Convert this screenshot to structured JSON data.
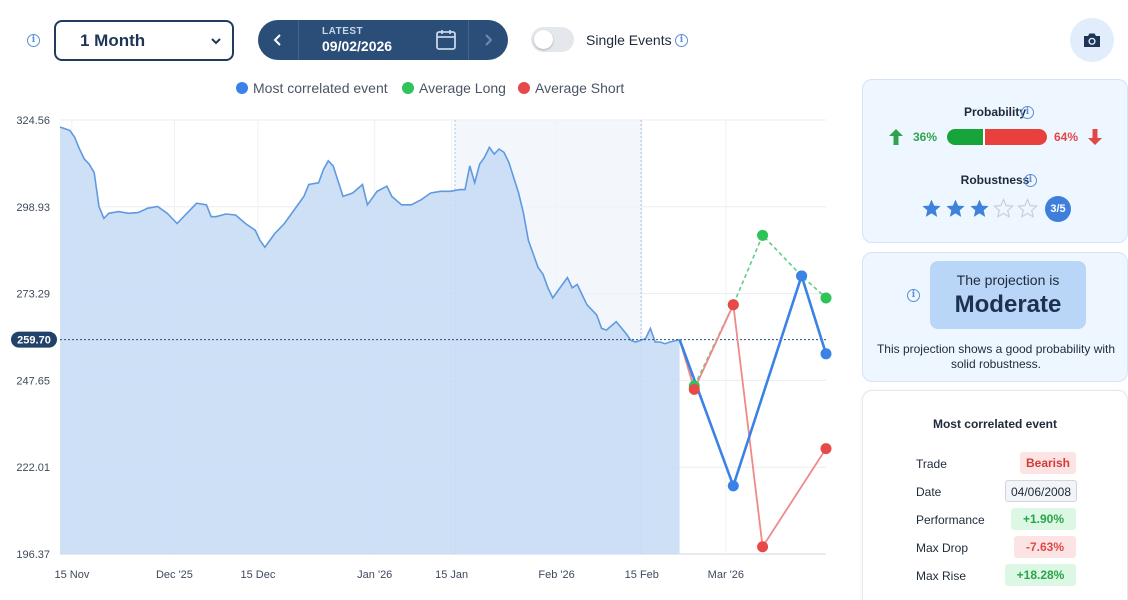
{
  "toolbar": {
    "period": "1 Month",
    "latest_label": "LATEST",
    "latest_date": "09/02/2026",
    "single_events_label": "Single Events",
    "single_events_on": false
  },
  "legend": [
    {
      "label": "Most correlated event",
      "color": "#3b82e6"
    },
    {
      "label": "Average Long",
      "color": "#2ec45a"
    },
    {
      "label": "Average Short",
      "color": "#e84848"
    }
  ],
  "chart_data": {
    "type": "line",
    "y_ticks": [
      "324.56",
      "298.93",
      "273.29",
      "247.65",
      "222.01",
      "196.37"
    ],
    "x_ticks": [
      "15 Nov",
      "Dec '25",
      "15 Dec",
      "Jan '26",
      "15 Jan",
      "Feb '26",
      "15 Feb",
      "Mar '26"
    ],
    "current_value": "259.70",
    "ylim": [
      196.37,
      324.56
    ],
    "history": {
      "name": "Price",
      "points": [
        [
          0,
          322.5
        ],
        [
          2,
          321.5
        ],
        [
          3,
          319.5
        ],
        [
          4,
          316
        ],
        [
          5,
          313
        ],
        [
          6,
          311.5
        ],
        [
          7,
          309
        ],
        [
          8,
          299
        ],
        [
          9,
          295.5
        ],
        [
          10,
          297
        ],
        [
          12,
          297.5
        ],
        [
          14,
          297
        ],
        [
          16,
          297.2
        ],
        [
          18,
          298.5
        ],
        [
          20,
          299
        ],
        [
          22,
          297
        ],
        [
          24,
          294
        ],
        [
          26,
          297
        ],
        [
          28,
          300
        ],
        [
          30,
          299.5
        ],
        [
          31,
          296
        ],
        [
          32,
          296
        ],
        [
          34,
          296.8
        ],
        [
          36,
          296.5
        ],
        [
          38,
          294
        ],
        [
          40,
          292
        ],
        [
          41,
          289
        ],
        [
          42,
          287
        ],
        [
          43,
          289
        ],
        [
          44,
          291
        ],
        [
          46,
          294
        ],
        [
          48,
          298
        ],
        [
          50,
          302
        ],
        [
          51,
          305.5
        ],
        [
          53,
          306
        ],
        [
          54,
          310
        ],
        [
          55,
          312.5
        ],
        [
          56,
          311
        ],
        [
          57,
          306.5
        ],
        [
          58,
          302
        ],
        [
          60,
          303
        ],
        [
          62,
          305.5
        ],
        [
          63,
          299.5
        ],
        [
          65,
          303.5
        ],
        [
          67,
          305
        ],
        [
          68,
          302
        ],
        [
          70,
          299.5
        ],
        [
          72,
          299.5
        ],
        [
          74,
          301
        ],
        [
          76,
          303
        ],
        [
          78,
          303.5
        ],
        [
          80,
          303.5
        ],
        [
          82,
          304
        ],
        [
          83,
          304
        ],
        [
          84,
          311
        ],
        [
          85,
          306
        ],
        [
          86,
          311.5
        ],
        [
          87,
          313.5
        ],
        [
          88,
          316.5
        ],
        [
          89,
          314.5
        ],
        [
          90,
          316
        ],
        [
          91,
          315
        ],
        [
          92,
          312
        ],
        [
          94,
          303
        ],
        [
          95,
          297
        ],
        [
          96,
          289
        ],
        [
          98,
          281
        ],
        [
          99,
          279
        ],
        [
          100,
          275
        ],
        [
          101,
          272
        ],
        [
          103,
          276
        ],
        [
          104,
          278
        ],
        [
          105,
          275
        ],
        [
          106,
          276
        ],
        [
          107,
          273
        ],
        [
          108,
          270
        ],
        [
          110,
          267
        ],
        [
          111,
          263
        ],
        [
          112,
          262.5
        ],
        [
          114,
          265
        ],
        [
          116,
          261.5
        ],
        [
          117,
          259.5
        ],
        [
          118,
          259
        ],
        [
          119,
          259.5
        ],
        [
          120,
          260
        ],
        [
          121,
          263
        ],
        [
          122,
          259
        ],
        [
          123,
          259
        ],
        [
          124,
          258.5
        ],
        [
          125,
          259
        ],
        [
          127,
          259.7
        ]
      ]
    },
    "projection": {
      "x": [
        127,
        130,
        138,
        144,
        152,
        157
      ],
      "most_correlated": [
        null,
        null,
        216.5,
        null,
        278.5,
        255.5
      ],
      "average_long": [
        null,
        246,
        270,
        290.5,
        278.5,
        272
      ],
      "average_short": [
        null,
        245,
        270,
        198.5,
        null,
        227.5
      ]
    },
    "projection_start_value": 259.7
  },
  "probability": {
    "title": "Probability",
    "long_pct": "36%",
    "short_pct": "64%",
    "long_fraction": 0.36
  },
  "robustness": {
    "title": "Robustness",
    "score": 3,
    "max": 5,
    "badge": "3/5"
  },
  "projection": {
    "line1": "The projection is",
    "line2": "Moderate",
    "description": "This projection shows a good probability with solid robustness."
  },
  "event": {
    "title": "Most correlated event",
    "rows": [
      {
        "label": "Trade",
        "value": "Bearish"
      },
      {
        "label": "Date",
        "value": "04/06/2008"
      },
      {
        "label": "Performance",
        "value": "+1.90%"
      },
      {
        "label": "Max Drop",
        "value": "-7.63%"
      },
      {
        "label": "Max Rise",
        "value": "+18.28%"
      }
    ]
  },
  "colors": {
    "navy": "#2b4e78",
    "blue": "#3b82e6",
    "green": "#2ec45a",
    "red": "#e84848",
    "area": "#c6dbf4"
  }
}
